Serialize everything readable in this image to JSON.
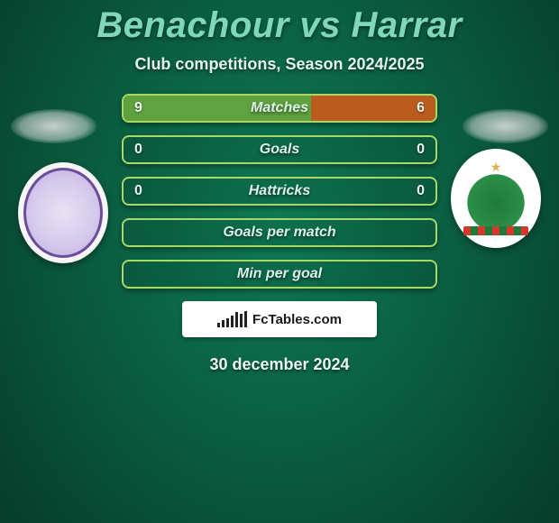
{
  "title": "Benachour vs Harrar",
  "subtitle": "Club competitions, Season 2024/2025",
  "date": "30 december 2024",
  "logo_text": "FcTables.com",
  "colors": {
    "border_a": "#a8d964",
    "border_b": "#d67b2f",
    "fill_a": "#5fa23f",
    "fill_b": "#b95c1e",
    "label": "#dff2e9",
    "value": "#e8f6ef"
  },
  "rows": [
    {
      "label": "Matches",
      "left": "9",
      "right": "6",
      "left_pct": 60,
      "right_pct": 40,
      "show_values": true
    },
    {
      "label": "Goals",
      "left": "0",
      "right": "0",
      "left_pct": 0,
      "right_pct": 0,
      "show_values": true
    },
    {
      "label": "Hattricks",
      "left": "0",
      "right": "0",
      "left_pct": 0,
      "right_pct": 0,
      "show_values": true
    },
    {
      "label": "Goals per match",
      "left": "",
      "right": "",
      "left_pct": 0,
      "right_pct": 0,
      "show_values": false
    },
    {
      "label": "Min per goal",
      "left": "",
      "right": "",
      "left_pct": 0,
      "right_pct": 0,
      "show_values": false
    }
  ],
  "logo_bars_heights": [
    5,
    8,
    10,
    13,
    17,
    15,
    18
  ]
}
